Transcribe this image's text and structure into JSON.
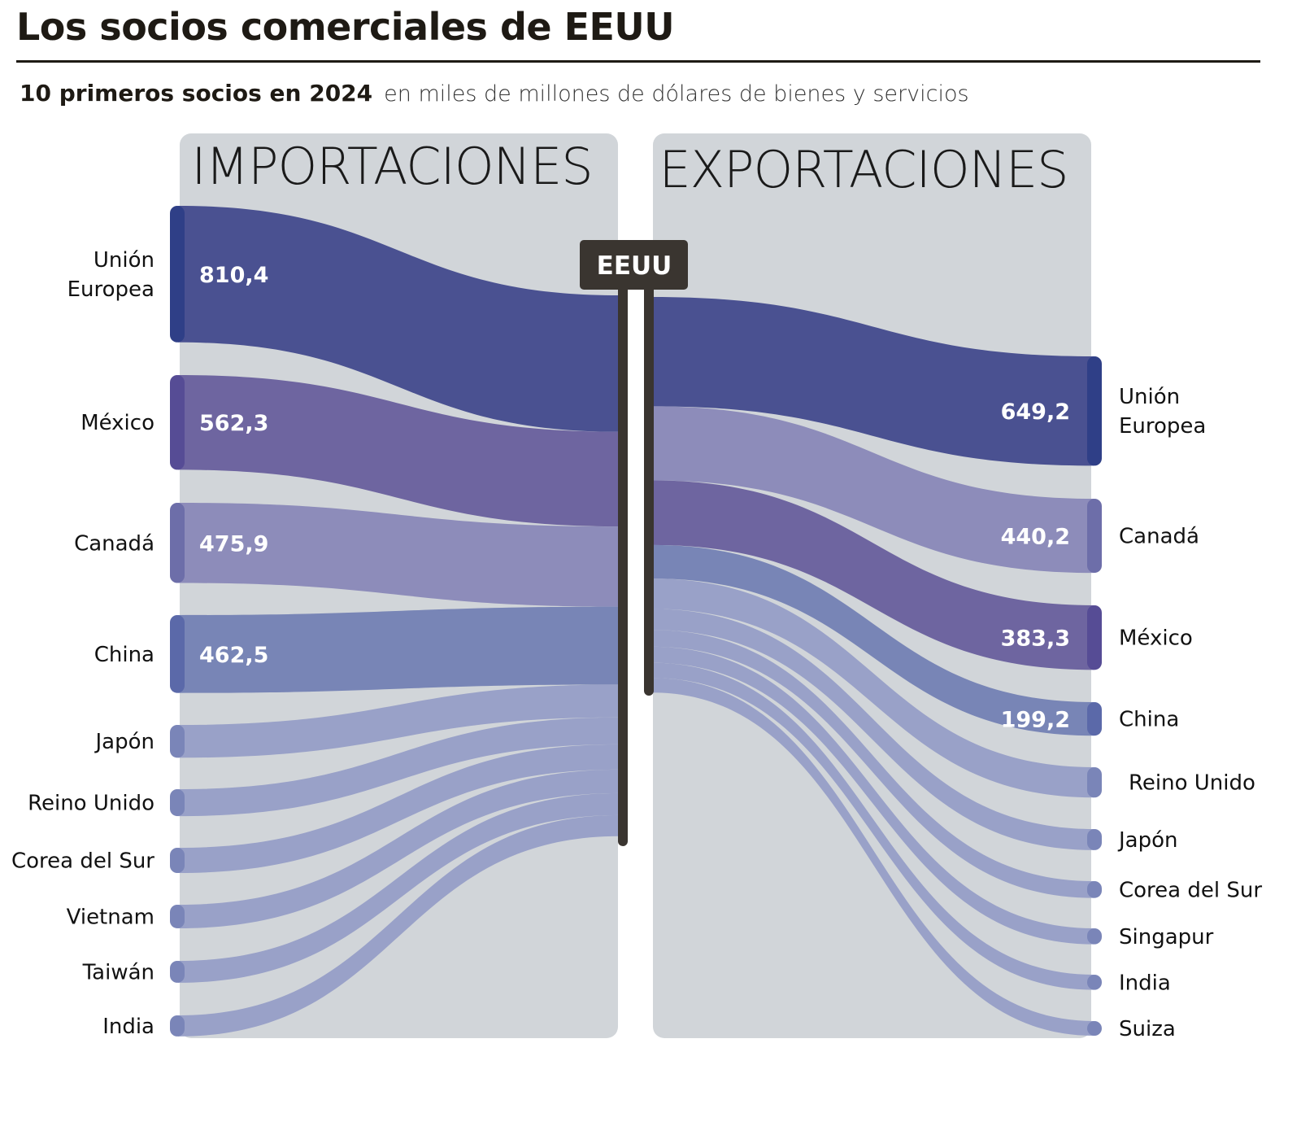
{
  "title": "Los socios comerciales de EEUU",
  "subtitle": {
    "bold": "10 primeros socios en 2024",
    "light": "en miles de millones de dólares de bienes y servicios"
  },
  "center_label": "EEUU",
  "chart_data": {
    "type": "sankey",
    "title": "Los socios comerciales de EEUU",
    "unit": "miles de millones de dólares",
    "imports": {
      "header": "IMPORTACIONES",
      "flows": [
        {
          "name": "Unión Europea",
          "value": 810.4,
          "label": "810,4"
        },
        {
          "name": "México",
          "value": 562.3,
          "label": "562,3"
        },
        {
          "name": "Canadá",
          "value": 475.9,
          "label": "475,9"
        },
        {
          "name": "China",
          "value": 462.5,
          "label": "462,5"
        },
        {
          "name": "Japón",
          "value": 195,
          "label": null
        },
        {
          "name": "Reino Unido",
          "value": 160,
          "label": null
        },
        {
          "name": "Corea del Sur",
          "value": 150,
          "label": null
        },
        {
          "name": "Vietnam",
          "value": 140,
          "label": null
        },
        {
          "name": "Taiwán",
          "value": 130,
          "label": null
        },
        {
          "name": "India",
          "value": 125,
          "label": null
        }
      ]
    },
    "exports": {
      "header": "EXPORTACIONES",
      "flows": [
        {
          "name": "Unión Europea",
          "value": 649.2,
          "label": "649,2"
        },
        {
          "name": "Canadá",
          "value": 440.2,
          "label": "440,2"
        },
        {
          "name": "México",
          "value": 383.3,
          "label": "383,3"
        },
        {
          "name": "China",
          "value": 199.2,
          "label": "199,2"
        },
        {
          "name": "Reino Unido",
          "value": 180,
          "label": null
        },
        {
          "name": "Japón",
          "value": 125,
          "label": null
        },
        {
          "name": "Corea del Sur",
          "value": 100,
          "label": null
        },
        {
          "name": "Singapur",
          "value": 95,
          "label": null
        },
        {
          "name": "India",
          "value": 90,
          "label": null
        },
        {
          "name": "Suiza",
          "value": 85,
          "label": null
        }
      ]
    },
    "colors": {
      "Unión Europea": "#4a5191",
      "México": "#6e65a0",
      "Canadá": "#8d8cba",
      "China": "#7885b6",
      "other": "#99a1c8"
    },
    "nodeColors": {
      "Unión Europea": "#2f3f87",
      "México": "#564c95",
      "Canadá": "#6d6ea9",
      "China": "#5b69a9",
      "other": "#7a85b8"
    }
  }
}
